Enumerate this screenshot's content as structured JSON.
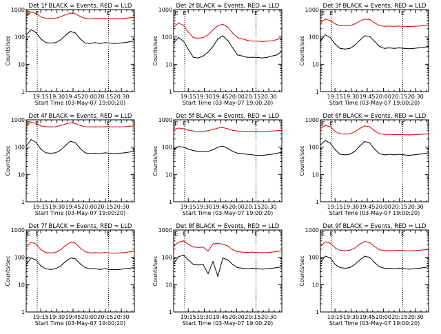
{
  "colors": {
    "events": "#000000",
    "lld": "#dd0000",
    "background": "#ffffff",
    "axes": "#000000"
  },
  "time_axis": {
    "ticks": [
      "19:15",
      "19:30",
      "19:45",
      "20:00",
      "20:15",
      "20:30"
    ],
    "xlabel": "Start Time (03-May-07 19:00:20)",
    "x_range": [
      "19:00",
      "20:40"
    ],
    "tick_minutes": [
      75,
      90,
      105,
      120,
      135,
      150
    ]
  },
  "ylabel": "Counts/sec",
  "y_ticks": [
    "1",
    "10",
    "100",
    "1000"
  ],
  "marker_text": "E",
  "chart_data": [
    {
      "type": "line",
      "title": "Det 1f BLACK = Events, RED = LLD",
      "xlabel": "Start Time (03-May-07 19:00:20)",
      "ylabel": "Counts/sec",
      "y_scale": "log",
      "ylim": [
        1,
        1000
      ],
      "x_minutes": [
        0,
        8,
        16,
        24,
        32,
        40,
        48,
        56,
        64,
        72,
        80,
        88,
        96,
        104,
        112,
        120,
        128,
        136,
        144,
        152,
        160,
        168,
        176
      ],
      "markers_minutes": [
        18,
        134
      ],
      "series": [
        {
          "name": "Events",
          "color": "#000000",
          "values": [
            120,
            185,
            145,
            85,
            62,
            60,
            62,
            78,
            115,
            160,
            140,
            85,
            60,
            58,
            62,
            58,
            62,
            60,
            58,
            60,
            62,
            66,
            72
          ]
        },
        {
          "name": "LLD",
          "color": "#dd0000",
          "values": [
            600,
            820,
            720,
            540,
            480,
            470,
            480,
            550,
            650,
            750,
            700,
            560,
            480,
            460,
            475,
            470,
            480,
            470,
            460,
            470,
            480,
            500,
            520
          ]
        }
      ]
    },
    {
      "type": "line",
      "title": "Det 2f BLACK = Events, RED = LLD",
      "xlabel": "Start Time (03-May-07 19:00:20)",
      "ylabel": "Counts/sec",
      "y_scale": "log",
      "ylim": [
        1,
        1000
      ],
      "x_minutes": [
        0,
        8,
        16,
        24,
        32,
        40,
        48,
        56,
        64,
        72,
        80,
        88,
        96,
        104,
        112,
        120,
        128,
        136,
        144,
        152,
        160,
        168,
        176
      ],
      "markers_minutes": [
        18,
        134
      ],
      "series": [
        {
          "name": "Events",
          "color": "#000000",
          "values": [
            60,
            95,
            70,
            35,
            18,
            17,
            20,
            28,
            45,
            85,
            110,
            75,
            40,
            22,
            20,
            18,
            18,
            18,
            17,
            18,
            20,
            22,
            30
          ]
        },
        {
          "name": "LLD",
          "color": "#dd0000",
          "values": [
            230,
            320,
            270,
            150,
            95,
            90,
            95,
            120,
            180,
            260,
            290,
            230,
            140,
            95,
            85,
            75,
            70,
            70,
            68,
            70,
            72,
            80,
            95
          ]
        }
      ]
    },
    {
      "type": "line",
      "title": "Det 3f BLACK = Events, RED = LLD",
      "xlabel": "Start Time (03-May-07 19:00:20)",
      "ylabel": "Counts/sec",
      "y_scale": "log",
      "ylim": [
        1,
        1000
      ],
      "x_minutes": [
        0,
        8,
        16,
        24,
        32,
        40,
        48,
        56,
        64,
        72,
        80,
        88,
        96,
        104,
        112,
        120,
        128,
        136,
        144,
        152,
        160,
        168,
        176
      ],
      "markers_minutes": [
        18,
        134
      ],
      "series": [
        {
          "name": "Events",
          "color": "#000000",
          "values": [
            70,
            120,
            95,
            55,
            38,
            36,
            38,
            50,
            75,
            110,
            105,
            70,
            45,
            38,
            40,
            38,
            40,
            38,
            37,
            38,
            40,
            42,
            45
          ]
        },
        {
          "name": "LLD",
          "color": "#dd0000",
          "values": [
            330,
            450,
            400,
            300,
            260,
            255,
            260,
            300,
            380,
            450,
            430,
            330,
            260,
            245,
            250,
            245,
            250,
            245,
            240,
            245,
            250,
            260,
            270
          ]
        }
      ]
    },
    {
      "type": "line",
      "title": "Det 4f BLACK = Events, RED = LLD",
      "xlabel": "Start Time (03-May-07 19:00:20)",
      "ylabel": "Counts/sec",
      "y_scale": "log",
      "ylim": [
        1,
        1000
      ],
      "x_minutes": [
        0,
        8,
        16,
        24,
        32,
        40,
        48,
        56,
        64,
        72,
        80,
        88,
        96,
        104,
        112,
        120,
        128,
        136,
        144,
        152,
        160,
        168,
        176
      ],
      "markers_minutes": [
        18,
        134
      ],
      "series": [
        {
          "name": "Events",
          "color": "#000000",
          "values": [
            110,
            190,
            150,
            85,
            62,
            60,
            62,
            78,
            115,
            165,
            145,
            88,
            62,
            58,
            60,
            58,
            62,
            60,
            58,
            60,
            62,
            66,
            75
          ]
        },
        {
          "name": "LLD",
          "color": "#dd0000",
          "values": [
            680,
            820,
            740,
            600,
            560,
            555,
            560,
            620,
            700,
            780,
            740,
            620,
            560,
            550,
            555,
            550,
            560,
            555,
            550,
            555,
            560,
            580,
            600
          ]
        }
      ]
    },
    {
      "type": "line",
      "title": "Det 5f BLACK = Events, RED = LLD",
      "xlabel": "Start Time (03-May-07 19:00:20)",
      "ylabel": "Counts/sec",
      "y_scale": "log",
      "ylim": [
        1,
        1000
      ],
      "x_minutes": [
        0,
        8,
        16,
        24,
        32,
        40,
        48,
        56,
        64,
        72,
        80,
        88,
        96,
        104,
        112,
        120,
        128,
        136,
        144,
        152,
        160,
        168,
        176
      ],
      "markers_minutes": [
        18,
        134
      ],
      "series": [
        {
          "name": "Events",
          "color": "#000000",
          "values": [
            80,
            105,
            100,
            85,
            75,
            70,
            68,
            70,
            80,
            100,
            110,
            90,
            70,
            60,
            58,
            55,
            52,
            50,
            50,
            52,
            55,
            60,
            65
          ]
        },
        {
          "name": "LLD",
          "color": "#dd0000",
          "values": [
            430,
            500,
            470,
            420,
            390,
            380,
            380,
            400,
            440,
            500,
            520,
            470,
            410,
            390,
            385,
            380,
            380,
            375,
            375,
            380,
            390,
            400,
            410
          ]
        }
      ]
    },
    {
      "type": "line",
      "title": "Det 6f BLACK = Events, RED = LLD",
      "xlabel": "Start Time (03-May-07 19:00:20)",
      "ylabel": "Counts/sec",
      "y_scale": "log",
      "ylim": [
        1,
        1000
      ],
      "x_minutes": [
        0,
        8,
        16,
        24,
        32,
        40,
        48,
        56,
        64,
        72,
        80,
        88,
        96,
        104,
        112,
        120,
        128,
        136,
        144,
        152,
        160,
        168,
        176
      ],
      "markers_minutes": [
        18,
        134
      ],
      "series": [
        {
          "name": "Events",
          "color": "#000000",
          "values": [
            120,
            175,
            140,
            80,
            55,
            52,
            55,
            70,
            110,
            160,
            145,
            85,
            58,
            52,
            55,
            52,
            55,
            52,
            50,
            52,
            55,
            58,
            62
          ]
        },
        {
          "name": "LLD",
          "color": "#dd0000",
          "values": [
            480,
            620,
            560,
            380,
            310,
            300,
            305,
            370,
            480,
            600,
            560,
            400,
            310,
            290,
            295,
            285,
            290,
            285,
            280,
            285,
            290,
            300,
            310
          ]
        }
      ]
    },
    {
      "type": "line",
      "title": "Det 7f BLACK = Events, RED = LLD",
      "xlabel": "Start Time (03-May-07 19:00:20)",
      "ylabel": "Counts/sec",
      "y_scale": "log",
      "ylim": [
        1,
        1000
      ],
      "x_minutes": [
        0,
        8,
        16,
        24,
        32,
        40,
        48,
        56,
        64,
        72,
        80,
        88,
        96,
        104,
        112,
        120,
        128,
        136,
        144,
        152,
        160,
        168,
        176
      ],
      "markers_minutes": [
        18,
        134
      ],
      "series": [
        {
          "name": "Events",
          "color": "#000000",
          "values": [
            55,
            95,
            80,
            48,
            38,
            36,
            38,
            48,
            70,
            95,
            88,
            58,
            42,
            38,
            38,
            36,
            38,
            36,
            35,
            36,
            38,
            40,
            42
          ]
        },
        {
          "name": "LLD",
          "color": "#dd0000",
          "values": [
            230,
            360,
            310,
            190,
            150,
            145,
            150,
            190,
            270,
            360,
            330,
            220,
            160,
            145,
            148,
            145,
            150,
            145,
            142,
            145,
            150,
            158,
            165
          ]
        }
      ]
    },
    {
      "type": "line",
      "title": "Det 8f BLACK = Events, RED = LLD",
      "xlabel": "Start Time (03-May-07 19:00:20)",
      "ylabel": "Counts/sec",
      "y_scale": "log",
      "ylim": [
        1,
        1000
      ],
      "x_minutes": [
        0,
        8,
        16,
        24,
        32,
        40,
        48,
        56,
        64,
        72,
        80,
        88,
        96,
        104,
        112,
        120,
        128,
        136,
        144,
        152,
        160,
        168,
        176
      ],
      "markers_minutes": [
        18,
        134
      ],
      "series": [
        {
          "name": "Events",
          "color": "#000000",
          "values": [
            60,
            105,
            120,
            80,
            55,
            52,
            55,
            25,
            70,
            20,
            95,
            80,
            55,
            42,
            40,
            38,
            40,
            38,
            37,
            38,
            40,
            42,
            45
          ]
        },
        {
          "name": "LLD",
          "color": "#dd0000",
          "values": [
            250,
            360,
            400,
            300,
            240,
            230,
            235,
            170,
            310,
            330,
            300,
            260,
            190,
            160,
            155,
            150,
            155,
            150,
            148,
            150,
            155,
            162,
            170
          ]
        }
      ]
    },
    {
      "type": "line",
      "title": "Det 9f BLACK = Events, RED = LLD",
      "xlabel": "Start Time (03-May-07 19:00:20)",
      "ylabel": "Counts/sec",
      "y_scale": "log",
      "ylim": [
        1,
        1000
      ],
      "x_minutes": [
        0,
        8,
        16,
        24,
        32,
        40,
        48,
        56,
        64,
        72,
        80,
        88,
        96,
        104,
        112,
        120,
        128,
        136,
        144,
        152,
        160,
        168,
        176
      ],
      "markers_minutes": [
        18,
        134
      ],
      "series": [
        {
          "name": "Events",
          "color": "#000000",
          "values": [
            65,
            110,
            95,
            55,
            42,
            40,
            42,
            55,
            80,
            110,
            100,
            65,
            45,
            40,
            40,
            38,
            40,
            38,
            37,
            38,
            40,
            42,
            45
          ]
        },
        {
          "name": "LLD",
          "color": "#dd0000",
          "values": [
            250,
            370,
            330,
            220,
            180,
            175,
            180,
            220,
            300,
            380,
            350,
            250,
            190,
            175,
            178,
            175,
            180,
            175,
            172,
            175,
            180,
            188,
            195
          ]
        }
      ]
    }
  ]
}
